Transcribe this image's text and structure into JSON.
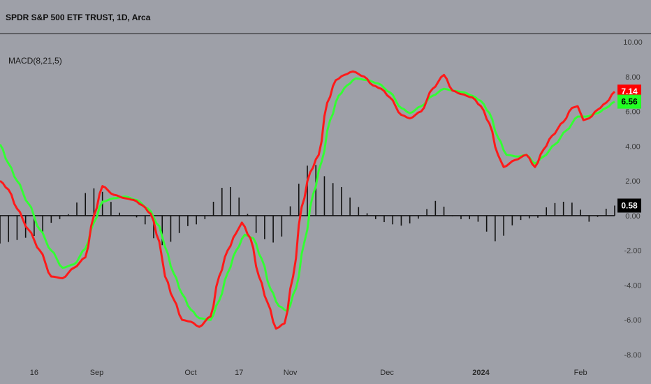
{
  "header": {
    "title": "SPDR S&P 500 ETF TRUST, 1D, Arca"
  },
  "indicator": {
    "label": "MACD(8,21,5)"
  },
  "colors": {
    "background": "#9ea0a8",
    "macd_line": "#ff1a1a",
    "signal_line": "#33ff33",
    "histogram": "#111111",
    "zero_line": "#111111",
    "axis_text": "#3a3a3a"
  },
  "chart_data": {
    "type": "line",
    "title": "",
    "xlabel": "",
    "ylabel": "",
    "ylim": [
      -8,
      10
    ],
    "y_ticks": [
      "10.00",
      "8.00",
      "6.00",
      "4.00",
      "2.00",
      "0.00",
      "-2.00",
      "-4.00",
      "-6.00",
      "-8.00"
    ],
    "x_labels": [
      "16",
      "Sep",
      "Oct",
      "17",
      "Nov",
      "Dec",
      "2024",
      "Feb"
    ],
    "x_label_index": [
      12,
      34,
      67,
      84,
      102,
      136,
      169,
      204
    ],
    "n": 216,
    "series": [
      {
        "name": "MACD",
        "keypoints": [
          [
            0,
            2.0
          ],
          [
            3,
            1.5
          ],
          [
            6,
            0.4
          ],
          [
            10,
            -0.8
          ],
          [
            14,
            -2.0
          ],
          [
            18,
            -3.5
          ],
          [
            22,
            -3.6
          ],
          [
            26,
            -3.0
          ],
          [
            30,
            -2.4
          ],
          [
            33,
            0.0
          ],
          [
            36,
            1.7
          ],
          [
            40,
            1.2
          ],
          [
            44,
            1.0
          ],
          [
            47,
            0.9
          ],
          [
            50,
            0.6
          ],
          [
            53,
            0.1
          ],
          [
            56,
            -1.5
          ],
          [
            58,
            -3.5
          ],
          [
            61,
            -4.8
          ],
          [
            64,
            -6.0
          ],
          [
            67,
            -6.1
          ],
          [
            70,
            -6.4
          ],
          [
            74,
            -5.8
          ],
          [
            77,
            -3.5
          ],
          [
            80,
            -2.0
          ],
          [
            83,
            -1.0
          ],
          [
            85,
            -0.4
          ],
          [
            88,
            -1.3
          ],
          [
            91,
            -3.5
          ],
          [
            94,
            -5.0
          ],
          [
            97,
            -6.5
          ],
          [
            100,
            -6.2
          ],
          [
            103,
            -3.5
          ],
          [
            106,
            0.5
          ],
          [
            109,
            2.5
          ],
          [
            112,
            3.5
          ],
          [
            115,
            6.5
          ],
          [
            118,
            7.8
          ],
          [
            121,
            8.1
          ],
          [
            124,
            8.3
          ],
          [
            128,
            8.0
          ],
          [
            131,
            7.5
          ],
          [
            134,
            7.3
          ],
          [
            137,
            6.8
          ],
          [
            141,
            5.8
          ],
          [
            144,
            5.6
          ],
          [
            148,
            6.0
          ],
          [
            152,
            7.3
          ],
          [
            156,
            8.1
          ],
          [
            159,
            7.2
          ],
          [
            162,
            7.0
          ],
          [
            166,
            6.8
          ],
          [
            169,
            6.3
          ],
          [
            172,
            5.3
          ],
          [
            175,
            3.5
          ],
          [
            177,
            2.8
          ],
          [
            181,
            3.2
          ],
          [
            185,
            3.5
          ],
          [
            188,
            2.8
          ],
          [
            191,
            3.8
          ],
          [
            194,
            4.6
          ],
          [
            198,
            5.4
          ],
          [
            201,
            6.2
          ],
          [
            203,
            6.3
          ],
          [
            205,
            5.5
          ],
          [
            207,
            5.6
          ],
          [
            210,
            6.1
          ],
          [
            213,
            6.5
          ],
          [
            216,
            7.14
          ]
        ]
      },
      {
        "name": "Signal",
        "keypoints": [
          [
            0,
            4.1
          ],
          [
            3,
            3.0
          ],
          [
            6,
            2.0
          ],
          [
            10,
            0.7
          ],
          [
            14,
            -0.8
          ],
          [
            18,
            -2.0
          ],
          [
            22,
            -3.0
          ],
          [
            26,
            -2.8
          ],
          [
            30,
            -1.9
          ],
          [
            33,
            -0.4
          ],
          [
            36,
            0.8
          ],
          [
            40,
            1.0
          ],
          [
            44,
            1.1
          ],
          [
            48,
            0.9
          ],
          [
            52,
            0.4
          ],
          [
            56,
            -0.6
          ],
          [
            58,
            -1.8
          ],
          [
            61,
            -3.3
          ],
          [
            64,
            -4.5
          ],
          [
            67,
            -5.4
          ],
          [
            70,
            -5.9
          ],
          [
            74,
            -6.0
          ],
          [
            77,
            -4.9
          ],
          [
            80,
            -3.3
          ],
          [
            83,
            -2.0
          ],
          [
            86,
            -1.1
          ],
          [
            89,
            -1.3
          ],
          [
            92,
            -2.5
          ],
          [
            95,
            -4.2
          ],
          [
            98,
            -5.2
          ],
          [
            101,
            -5.5
          ],
          [
            104,
            -4.2
          ],
          [
            107,
            -1.5
          ],
          [
            110,
            1.2
          ],
          [
            113,
            3.1
          ],
          [
            116,
            5.5
          ],
          [
            119,
            6.9
          ],
          [
            122,
            7.5
          ],
          [
            125,
            7.9
          ],
          [
            129,
            7.8
          ],
          [
            133,
            7.6
          ],
          [
            137,
            7.1
          ],
          [
            141,
            6.2
          ],
          [
            144,
            5.9
          ],
          [
            148,
            6.3
          ],
          [
            152,
            6.9
          ],
          [
            156,
            7.3
          ],
          [
            159,
            7.2
          ],
          [
            163,
            7.1
          ],
          [
            166,
            6.9
          ],
          [
            169,
            6.6
          ],
          [
            172,
            5.9
          ],
          [
            175,
            4.5
          ],
          [
            178,
            3.5
          ],
          [
            182,
            3.4
          ],
          [
            185,
            3.5
          ],
          [
            188,
            3.0
          ],
          [
            191,
            3.4
          ],
          [
            195,
            4.1
          ],
          [
            199,
            4.9
          ],
          [
            203,
            5.7
          ],
          [
            206,
            5.7
          ],
          [
            210,
            5.9
          ],
          [
            213,
            6.2
          ],
          [
            216,
            6.56
          ]
        ]
      },
      {
        "name": "Histogram",
        "keypoints": [
          [
            0,
            -1.6
          ],
          [
            4,
            -1.5
          ],
          [
            8,
            -1.3
          ],
          [
            11,
            -1.2
          ],
          [
            15,
            -1.0
          ],
          [
            19,
            -0.3
          ],
          [
            23,
            -0.1
          ],
          [
            26,
            0.6
          ],
          [
            29,
            1.2
          ],
          [
            32,
            1.6
          ],
          [
            35,
            1.5
          ],
          [
            38,
            1.0
          ],
          [
            41,
            0.2
          ],
          [
            45,
            0.0
          ],
          [
            48,
            -0.1
          ],
          [
            51,
            -0.5
          ],
          [
            54,
            -1.3
          ],
          [
            57,
            -1.7
          ],
          [
            60,
            -1.5
          ],
          [
            63,
            -1.0
          ],
          [
            66,
            -0.6
          ],
          [
            69,
            -0.5
          ],
          [
            72,
            -0.2
          ],
          [
            75,
            0.8
          ],
          [
            78,
            1.6
          ],
          [
            80,
            1.8
          ],
          [
            83,
            1.2
          ],
          [
            86,
            0.6
          ],
          [
            88,
            -0.4
          ],
          [
            91,
            -1.2
          ],
          [
            94,
            -1.4
          ],
          [
            97,
            -1.6
          ],
          [
            99,
            -1.2
          ],
          [
            101,
            0.2
          ],
          [
            104,
            1.5
          ],
          [
            107,
            2.8
          ],
          [
            110,
            3.1
          ],
          [
            113,
            2.4
          ],
          [
            116,
            1.9
          ],
          [
            119,
            1.8
          ],
          [
            122,
            1.2
          ],
          [
            125,
            0.6
          ],
          [
            128,
            0.2
          ],
          [
            132,
            -0.2
          ],
          [
            136,
            -0.4
          ],
          [
            140,
            -0.6
          ],
          [
            143,
            -0.5
          ],
          [
            146,
            -0.3
          ],
          [
            149,
            0.2
          ],
          [
            152,
            0.9
          ],
          [
            155,
            0.7
          ],
          [
            158,
            0.0
          ],
          [
            162,
            -0.2
          ],
          [
            166,
            -0.2
          ],
          [
            169,
            -0.4
          ],
          [
            172,
            -1.1
          ],
          [
            175,
            -1.6
          ],
          [
            178,
            -1.0
          ],
          [
            181,
            -0.4
          ],
          [
            185,
            -0.1
          ],
          [
            188,
            -0.3
          ],
          [
            191,
            0.4
          ],
          [
            194,
            0.7
          ],
          [
            197,
            0.8
          ],
          [
            200,
            0.8
          ],
          [
            203,
            0.6
          ],
          [
            206,
            -0.4
          ],
          [
            209,
            -0.2
          ],
          [
            212,
            0.3
          ],
          [
            214,
            0.5
          ],
          [
            216,
            0.58
          ]
        ]
      }
    ],
    "last_values": [
      {
        "series": "MACD",
        "label": "7.14",
        "value": 7.14,
        "bg": "#ff0000",
        "fg": "#ffffff"
      },
      {
        "series": "Signal",
        "label": "6.56",
        "value": 6.56,
        "bg": "#22ff22",
        "fg": "#000000"
      },
      {
        "series": "Histogram",
        "label": "0.58",
        "value": 0.58,
        "bg": "#000000",
        "fg": "#ffffff"
      }
    ]
  }
}
